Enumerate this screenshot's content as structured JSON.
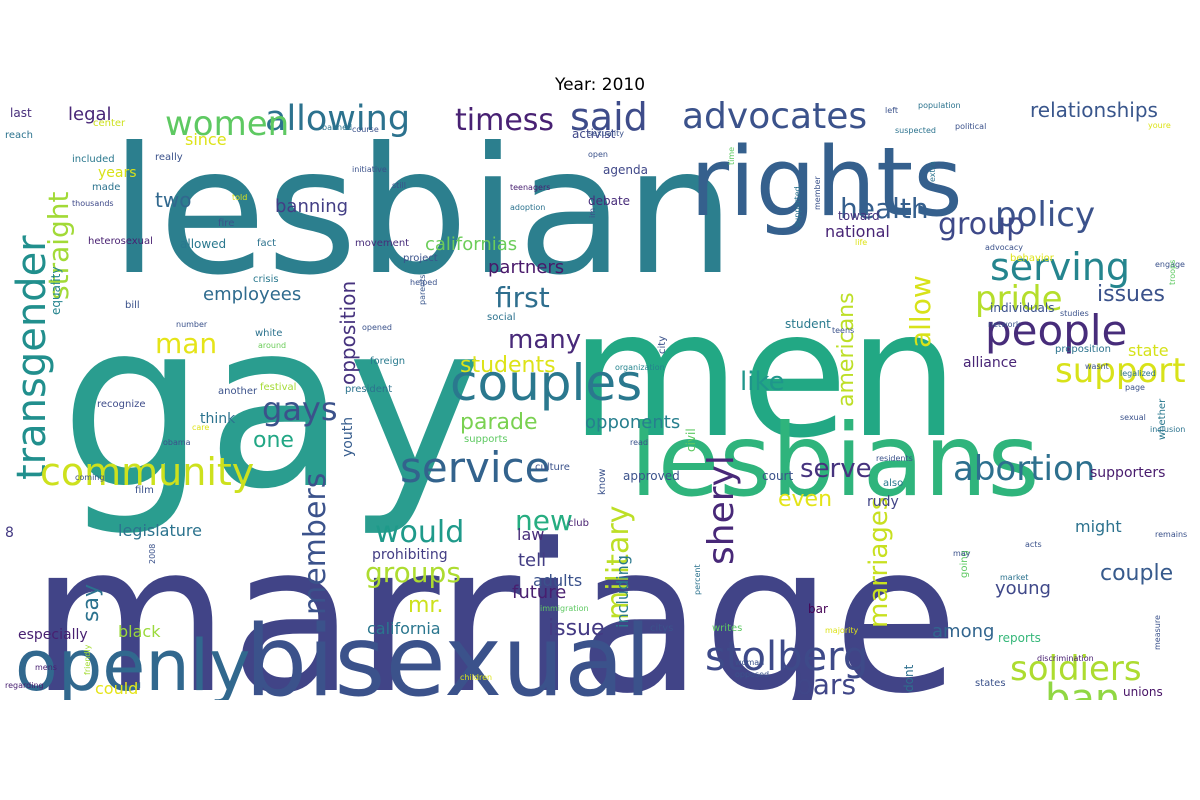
{
  "figure": {
    "title": "Year: 2010"
  },
  "wordcloud": {
    "background": "#ffffff",
    "palette": "viridis",
    "words": [
      {
        "text": "marriage",
        "color": "#414487"
      },
      {
        "text": "gay",
        "color": "#2a9d8f"
      },
      {
        "text": "lesbian",
        "color": "#2c7f8e"
      },
      {
        "text": "men",
        "color": "#22a884"
      },
      {
        "text": "rights",
        "color": "#35608d"
      },
      {
        "text": "lesbians",
        "color": "#2fb47c"
      },
      {
        "text": "bisexual",
        "color": "#3b528b"
      },
      {
        "text": "openly",
        "color": "#31688e"
      },
      {
        "text": "couples",
        "color": "#2a788e"
      },
      {
        "text": "transgender",
        "color": "#218f8d"
      },
      {
        "text": "people",
        "color": "#472c7a"
      },
      {
        "text": "service",
        "color": "#33638d"
      },
      {
        "text": "community",
        "color": "#cde11d"
      },
      {
        "text": "stolberg",
        "color": "#3e4a89"
      },
      {
        "text": "advocates",
        "color": "#3b528b"
      },
      {
        "text": "allowing",
        "color": "#2c728e"
      },
      {
        "text": "serving",
        "color": "#25858e"
      },
      {
        "text": "said",
        "color": "#3e4c8a"
      },
      {
        "text": "policy",
        "color": "#3b528b"
      },
      {
        "text": "women",
        "color": "#5ec962"
      },
      {
        "text": "abortion",
        "color": "#2d708e"
      },
      {
        "text": "support",
        "color": "#d8e219"
      },
      {
        "text": "ban",
        "color": "#90d743"
      },
      {
        "text": "soldiers",
        "color": "#addc30"
      },
      {
        "text": "sheryl",
        "color": "#482878"
      },
      {
        "text": "pride",
        "color": "#b5de2b"
      },
      {
        "text": "members",
        "color": "#3b528b"
      },
      {
        "text": "health",
        "color": "#355f8d"
      },
      {
        "text": "timess",
        "color": "#482173"
      },
      {
        "text": "straight",
        "color": "#a2da37"
      },
      {
        "text": "gays",
        "color": "#3b528b"
      },
      {
        "text": "military",
        "color": "#bddf26"
      },
      {
        "text": "marriages",
        "color": "#c8e020"
      },
      {
        "text": "group",
        "color": "#3e4989"
      },
      {
        "text": "first",
        "color": "#2e6e8e"
      },
      {
        "text": "relationships",
        "color": "#39568c"
      },
      {
        "text": "bars",
        "color": "#404688"
      },
      {
        "text": "couple",
        "color": "#375a8c"
      },
      {
        "text": "groups",
        "color": "#addc30"
      },
      {
        "text": "would",
        "color": "#1f9a8a"
      },
      {
        "text": "serve",
        "color": "#46337e"
      },
      {
        "text": "many",
        "color": "#482979"
      },
      {
        "text": "like",
        "color": "#1f968b"
      },
      {
        "text": "new",
        "color": "#26ad81"
      },
      {
        "text": "man",
        "color": "#e5e419"
      },
      {
        "text": "allow",
        "color": "#d8e219"
      },
      {
        "text": "issues",
        "color": "#3b528b"
      },
      {
        "text": "opposition",
        "color": "#46327e"
      },
      {
        "text": "americans",
        "color": "#bddf26"
      },
      {
        "text": "parade",
        "color": "#7ad151"
      },
      {
        "text": "students",
        "color": "#dde318"
      },
      {
        "text": "even",
        "color": "#e3e418"
      },
      {
        "text": "mr.",
        "color": "#cde11d"
      },
      {
        "text": "one",
        "color": "#22a785"
      },
      {
        "text": "issue",
        "color": "#443a83"
      },
      {
        "text": "say",
        "color": "#2c728e"
      },
      {
        "text": "legal",
        "color": "#482677"
      },
      {
        "text": "two",
        "color": "#31688e"
      },
      {
        "text": "banning",
        "color": "#433e85"
      },
      {
        "text": "employees",
        "color": "#2f6b8e"
      },
      {
        "text": "partners",
        "color": "#48186a"
      },
      {
        "text": "californias",
        "color": "#6ccd5a"
      },
      {
        "text": "national",
        "color": "#482576"
      },
      {
        "text": "opponents",
        "color": "#277f8e"
      },
      {
        "text": "among",
        "color": "#32658e"
      },
      {
        "text": "activists",
        "color": "#44bf70"
      },
      {
        "text": "young",
        "color": "#3f4889"
      },
      {
        "text": "future",
        "color": "#481f70"
      },
      {
        "text": "tell",
        "color": "#433d84"
      },
      {
        "text": "california",
        "color": "#2a768e"
      },
      {
        "text": "could",
        "color": "#e5e419"
      },
      {
        "text": "black",
        "color": "#9bd93c"
      },
      {
        "text": "including",
        "color": "#2a788e"
      },
      {
        "text": "legislature",
        "color": "#2c738e"
      },
      {
        "text": "prohibiting",
        "color": "#433d84"
      },
      {
        "text": "youth",
        "color": "#365c8d"
      },
      {
        "text": "law",
        "color": "#472c7a"
      },
      {
        "text": "adults",
        "color": "#3b528b"
      },
      {
        "text": "supporters",
        "color": "#481b6d"
      },
      {
        "text": "might",
        "color": "#2c728e"
      },
      {
        "text": "state",
        "color": "#d5e21a"
      },
      {
        "text": "alliance",
        "color": "#482576"
      },
      {
        "text": "legalize",
        "color": "#32648e"
      },
      {
        "text": "unions",
        "color": "#481467"
      },
      {
        "text": "especially",
        "color": "#482071"
      },
      {
        "text": "married",
        "color": "#482071"
      },
      {
        "text": "since",
        "color": "#dde318"
      },
      {
        "text": "years",
        "color": "#d8e219"
      },
      {
        "text": "allowed",
        "color": "#2a788e"
      },
      {
        "text": "think",
        "color": "#2c738e"
      },
      {
        "text": "civil",
        "color": "#5ec962"
      },
      {
        "text": "rudy",
        "color": "#414487"
      },
      {
        "text": "dont",
        "color": "#2e6f8e"
      },
      {
        "text": "trial",
        "color": "#52c569"
      },
      {
        "text": "student",
        "color": "#297a8e"
      },
      {
        "text": "individuals",
        "color": "#3b528b"
      },
      {
        "text": "toward",
        "color": "#46327e"
      },
      {
        "text": "debate",
        "color": "#472c7a"
      },
      {
        "text": "agenda",
        "color": "#3f4788"
      },
      {
        "text": "activist",
        "color": "#3f4788"
      },
      {
        "text": "reports",
        "color": "#35b779"
      },
      {
        "text": "approved",
        "color": "#3b528b"
      },
      {
        "text": "court",
        "color": "#3b528b"
      },
      {
        "text": "bar",
        "color": "#440154"
      },
      {
        "text": "also",
        "color": "#2a788e"
      },
      {
        "text": "8",
        "color": "#443a83"
      },
      {
        "text": "last",
        "color": "#472d7b"
      },
      {
        "text": "reach",
        "color": "#2c738e"
      },
      {
        "text": "center",
        "color": "#cde11d"
      },
      {
        "text": "included",
        "color": "#2a788e"
      },
      {
        "text": "really",
        "color": "#3b528b"
      },
      {
        "text": "made",
        "color": "#2c738e"
      },
      {
        "text": "thousands",
        "color": "#3e4989"
      },
      {
        "text": "heterosexual",
        "color": "#482071"
      },
      {
        "text": "equality",
        "color": "#25848e"
      },
      {
        "text": "bill",
        "color": "#3b528b"
      },
      {
        "text": "recognize",
        "color": "#3e4c8a"
      },
      {
        "text": "another",
        "color": "#3b528b"
      },
      {
        "text": "president",
        "color": "#2c738e"
      },
      {
        "text": "foreign",
        "color": "#297a8e"
      },
      {
        "text": "festival",
        "color": "#a5db36"
      },
      {
        "text": "white",
        "color": "#2c728e"
      },
      {
        "text": "around",
        "color": "#6ccd5a"
      },
      {
        "text": "fire",
        "color": "#3b528b"
      },
      {
        "text": "told",
        "color": "#dde318"
      },
      {
        "text": "fact",
        "color": "#2c728e"
      },
      {
        "text": "movement",
        "color": "#472c7a"
      },
      {
        "text": "project",
        "color": "#3b528b"
      },
      {
        "text": "helped",
        "color": "#3b528b"
      },
      {
        "text": "parents",
        "color": "#39568c"
      },
      {
        "text": "crisis",
        "color": "#2a788e"
      },
      {
        "text": "number",
        "color": "#3b528b"
      },
      {
        "text": "social",
        "color": "#2c728e"
      },
      {
        "text": "opened",
        "color": "#3b528b"
      },
      {
        "text": "culture",
        "color": "#3b528b"
      },
      {
        "text": "supports",
        "color": "#5ec962"
      },
      {
        "text": "organization",
        "color": "#25848e"
      },
      {
        "text": "read",
        "color": "#3b528b"
      },
      {
        "text": "coming",
        "color": "#3b528b"
      },
      {
        "text": "film",
        "color": "#3b528b"
      },
      {
        "text": "obama",
        "color": "#3b528b"
      },
      {
        "text": "care",
        "color": "#dde318"
      },
      {
        "text": "mens",
        "color": "#482071"
      },
      {
        "text": "friendly",
        "color": "#a5db36"
      },
      {
        "text": "2008",
        "color": "#3b528b"
      },
      {
        "text": "regarding",
        "color": "#482071"
      },
      {
        "text": "children",
        "color": "#dde318"
      },
      {
        "text": "percent",
        "color": "#2c738e"
      },
      {
        "text": "club",
        "color": "#482071"
      },
      {
        "text": "know",
        "color": "#3b528b"
      },
      {
        "text": "city",
        "color": "#3b528b"
      },
      {
        "text": "citys",
        "color": "#3b528b"
      },
      {
        "text": "writes",
        "color": "#5ec962"
      },
      {
        "text": "woman",
        "color": "#3b528b"
      },
      {
        "text": "opposed",
        "color": "#3b528b"
      },
      {
        "text": "majority",
        "color": "#dde318"
      },
      {
        "text": "market",
        "color": "#2c728e"
      },
      {
        "text": "going",
        "color": "#5ec962"
      },
      {
        "text": "may",
        "color": "#3b528b"
      },
      {
        "text": "states",
        "color": "#3b528b"
      },
      {
        "text": "discrimination",
        "color": "#482071"
      },
      {
        "text": "measure",
        "color": "#3b528b"
      },
      {
        "text": "remains",
        "color": "#3b528b"
      },
      {
        "text": "acts",
        "color": "#3b528b"
      },
      {
        "text": "page",
        "color": "#3b528b"
      },
      {
        "text": "whether",
        "color": "#2a788e"
      },
      {
        "text": "inclusion",
        "color": "#2c738e"
      },
      {
        "text": "sexual",
        "color": "#3b528b"
      },
      {
        "text": "residents",
        "color": "#3b528b"
      },
      {
        "text": "legalized",
        "color": "#2c738e"
      },
      {
        "text": "wasnt",
        "color": "#3b528b"
      },
      {
        "text": "proposition",
        "color": "#2c738e"
      },
      {
        "text": "network",
        "color": "#3b528b"
      },
      {
        "text": "studies",
        "color": "#3b528b"
      },
      {
        "text": "engage",
        "color": "#3b528b"
      },
      {
        "text": "troops",
        "color": "#5ec962"
      },
      {
        "text": "advocacy",
        "color": "#3b528b"
      },
      {
        "text": "behavior",
        "color": "#dde318"
      },
      {
        "text": "life",
        "color": "#dde318"
      },
      {
        "text": "teens",
        "color": "#3b528b"
      },
      {
        "text": "supported",
        "color": "#2c738e"
      },
      {
        "text": "member",
        "color": "#3b528b"
      },
      {
        "text": "time",
        "color": "#5ec962"
      },
      {
        "text": "extra",
        "color": "#2c738e"
      },
      {
        "text": "left",
        "color": "#3b528b"
      },
      {
        "text": "population",
        "color": "#2c738e"
      },
      {
        "text": "political",
        "color": "#3b528b"
      },
      {
        "text": "suspected",
        "color": "#2c738e"
      },
      {
        "text": "youre",
        "color": "#dde318"
      },
      {
        "text": "sexuality",
        "color": "#3b528b"
      },
      {
        "text": "open",
        "color": "#3b528b"
      },
      {
        "text": "still",
        "color": "#3b528b"
      },
      {
        "text": "initiative",
        "color": "#3b528b"
      },
      {
        "text": "teenagers",
        "color": "#482071"
      },
      {
        "text": "adoption",
        "color": "#2c728e"
      },
      {
        "text": "im",
        "color": "#3b528b"
      },
      {
        "text": "banned",
        "color": "#2c738e"
      },
      {
        "text": "course",
        "color": "#3b528b"
      },
      {
        "text": "immigration",
        "color": "#5ec962"
      }
    ]
  }
}
